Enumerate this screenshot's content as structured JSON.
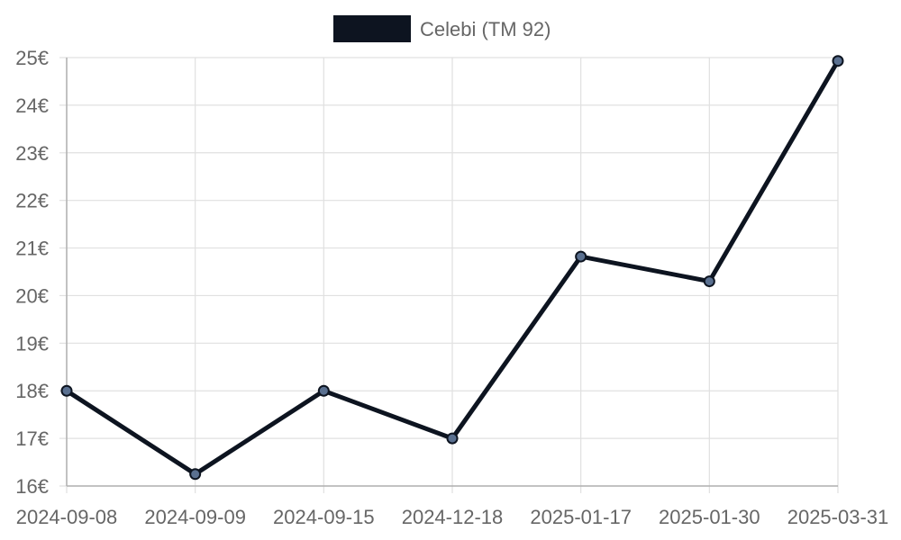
{
  "chart_data": {
    "type": "line",
    "title": "",
    "xlabel": "",
    "ylabel": "",
    "categories": [
      "2024-09-08",
      "2024-09-09",
      "2024-09-15",
      "2024-12-18",
      "2025-01-17",
      "2025-01-30",
      "2025-03-31"
    ],
    "series": [
      {
        "name": "Celebi (TM 92)",
        "values": [
          18.0,
          16.25,
          18.0,
          17.0,
          20.82,
          20.3,
          24.93
        ],
        "color": "#0d1420",
        "point_color": "#5a7090"
      }
    ],
    "ylim": [
      16,
      25
    ],
    "y_ticks": [
      "16€",
      "17€",
      "18€",
      "19€",
      "20€",
      "21€",
      "22€",
      "23€",
      "24€",
      "25€"
    ],
    "grid": true,
    "legend_position": "top-center"
  },
  "colors": {
    "grid": "#e0e0e0",
    "axis": "#b0b0b0",
    "text": "#666666"
  }
}
